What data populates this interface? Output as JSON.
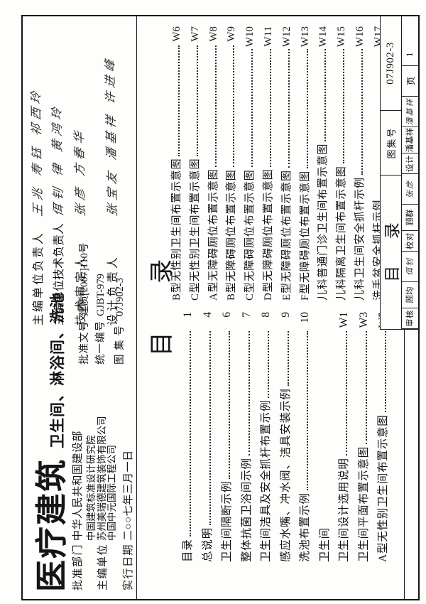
{
  "cover": {
    "series_title": "医疗建筑",
    "series_subtitle": "卫生间、淋浴间、洗池",
    "approval_dept_label": "批准部门",
    "approval_dept": "中华人民共和国建设部",
    "editor_label": "主编单位",
    "editors": [
      "中国建筑标准设计研究院",
      "苏州美瑞德建筑装饰有限公司",
      "中国中元国际工程公司"
    ],
    "date_label": "实行日期",
    "date_value": "二○○七年三月一日",
    "doc_no_label": "批准文号",
    "doc_no": "建质[2007]110号",
    "serial_label": "统一编号",
    "serial_no": "GJBT-979",
    "atlas_label": "图 集 号",
    "atlas_no": "07J902-3",
    "responsibles": [
      {
        "label": "主编单位负责人",
        "signatures": "王兆  寿钰  祁西玲"
      },
      {
        "label": "主编单位技术负责人",
        "signatures": "佴钊  律  黄鸿玲"
      },
      {
        "label": "技 术 审 定 人",
        "signatures": "张彦  方春华"
      },
      {
        "label": "设 计 负 责 人",
        "signatures": "张宝友  潘基祥  许进峰"
      }
    ]
  },
  "toc": {
    "heading": "目  录",
    "left_column": [
      {
        "title": "目录",
        "page": "1"
      },
      {
        "title": "总说明",
        "page": "4"
      },
      {
        "title": "卫生间隔断示例",
        "page": "6"
      },
      {
        "title": "整体抗菌卫浴间示例",
        "page": "7"
      },
      {
        "title": "卫生间洁具及安全抓杆布置示例",
        "page": "8"
      },
      {
        "title": "感应水嘴、冲水阀、洁具安装示例",
        "page": "9"
      },
      {
        "title": "洗池布置示例",
        "page": "10"
      },
      {
        "title": "卫生间",
        "page": "",
        "section": true
      },
      {
        "title": "卫生间设计选用说明",
        "page": "W1"
      },
      {
        "title": "卫生间平面布置示意图",
        "page": "W3"
      },
      {
        "title": "A型无性别卫生间布置示意图",
        "page": "W5"
      }
    ],
    "right_column": [
      {
        "title": "B型无性别卫生间布置示意图",
        "page": "W6"
      },
      {
        "title": "C型无性别卫生间布置示意图",
        "page": "W7"
      },
      {
        "title": "A型无障碍厕位布置示意图",
        "page": "W8"
      },
      {
        "title": "B型无障碍厕位布置示意图",
        "page": "W9"
      },
      {
        "title": "C型无障碍厕位布置示意图",
        "page": "W10"
      },
      {
        "title": "D型无障碍厕位布置示意图",
        "page": "W11"
      },
      {
        "title": "E型无障碍厕位布置示意图",
        "page": "W12"
      },
      {
        "title": "F型无障碍厕位布置示意图",
        "page": "W13"
      },
      {
        "title": "儿科普通门诊卫生间布置示意图",
        "page": "W14"
      },
      {
        "title": "儿科隔离卫生间布置示意图",
        "page": "W15"
      },
      {
        "title": "儿科卫生间安全抓杆示例",
        "page": "W16"
      },
      {
        "title": "洗手盆安全抓杆示例",
        "page": "W17"
      }
    ]
  },
  "titleblock": {
    "drawing_title": "目 录",
    "atlas_no_label": "图集号",
    "atlas_no": "07J902-3",
    "row2_cells": [
      {
        "text": "审核",
        "kind": "label"
      },
      {
        "text": "顾均",
        "kind": "name"
      },
      {
        "text": "佴钊",
        "kind": "sig"
      },
      {
        "text": "校对",
        "kind": "label"
      },
      {
        "text": "顾群",
        "kind": "name"
      },
      {
        "text": "张彦",
        "kind": "sig"
      },
      {
        "text": "设计",
        "kind": "label"
      },
      {
        "text": "潘基祥",
        "kind": "name"
      },
      {
        "text": "潘基祥",
        "kind": "sig"
      },
      {
        "text": "页",
        "kind": "page-label"
      },
      {
        "text": "1",
        "kind": "page-no"
      }
    ]
  }
}
